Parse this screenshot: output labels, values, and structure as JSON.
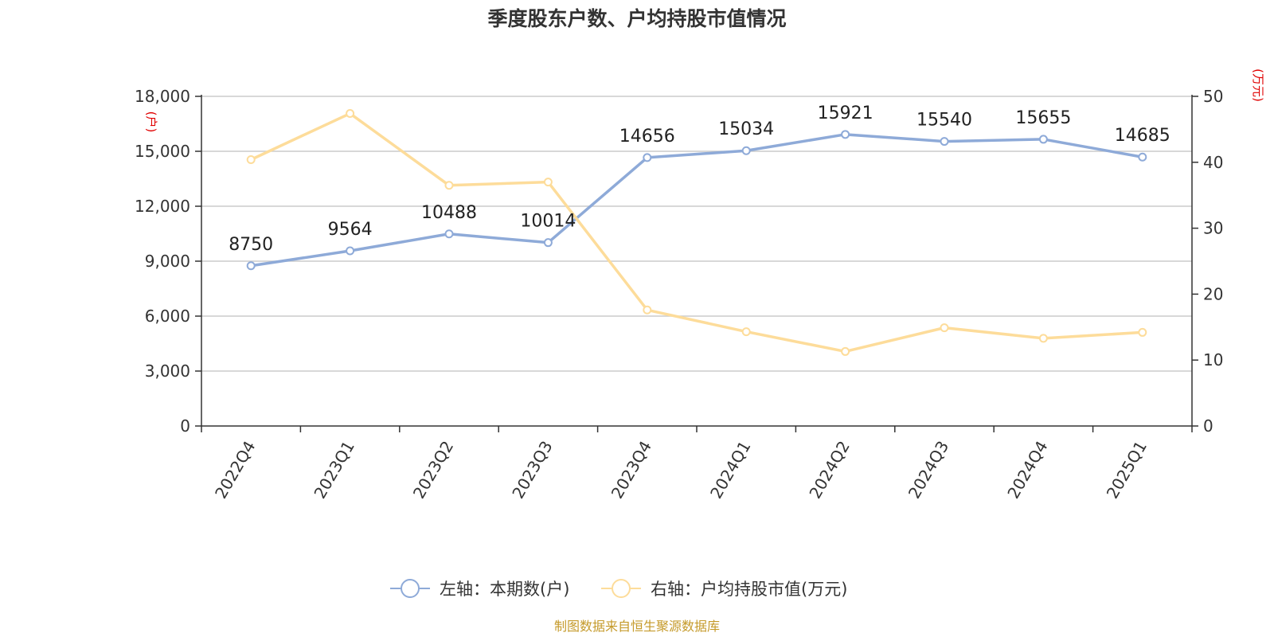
{
  "chart_data": {
    "type": "line",
    "title": "季度股东户数、户均持股市值情况",
    "categories": [
      "2022Q4",
      "2023Q1",
      "2023Q2",
      "2023Q3",
      "2023Q4",
      "2024Q1",
      "2024Q2",
      "2024Q3",
      "2024Q4",
      "2025Q1"
    ],
    "series": [
      {
        "name": "左轴：本期数(户)",
        "axis": "left",
        "color": "#8eaad8",
        "values": [
          8750,
          9564,
          10488,
          10014,
          14656,
          15034,
          15921,
          15540,
          15655,
          14685
        ],
        "labels": [
          "8750",
          "9564",
          "10488",
          "10014",
          "14656",
          "15034",
          "15921",
          "15540",
          "15655",
          "14685"
        ]
      },
      {
        "name": "右轴：户均持股市值(万元)",
        "axis": "right",
        "color": "#fddc9a",
        "values": [
          40.4,
          47.4,
          36.5,
          37.0,
          17.6,
          14.3,
          11.3,
          14.9,
          13.3,
          14.2
        ]
      }
    ],
    "left_axis": {
      "unit": "(户)",
      "min": 0,
      "max": 18000,
      "ticks": [
        "0",
        "3,000",
        "6,000",
        "9,000",
        "12,000",
        "15,000",
        "18,000"
      ]
    },
    "right_axis": {
      "unit": "(万元)",
      "min": 0,
      "max": 50,
      "ticks": [
        "0",
        "10",
        "20",
        "30",
        "40",
        "50"
      ]
    },
    "grid": true,
    "legend_position": "bottom",
    "unit_color": "#e00000"
  },
  "footer": {
    "source": "制图数据来自恒生聚源数据库",
    "color": "#c59a2a"
  }
}
